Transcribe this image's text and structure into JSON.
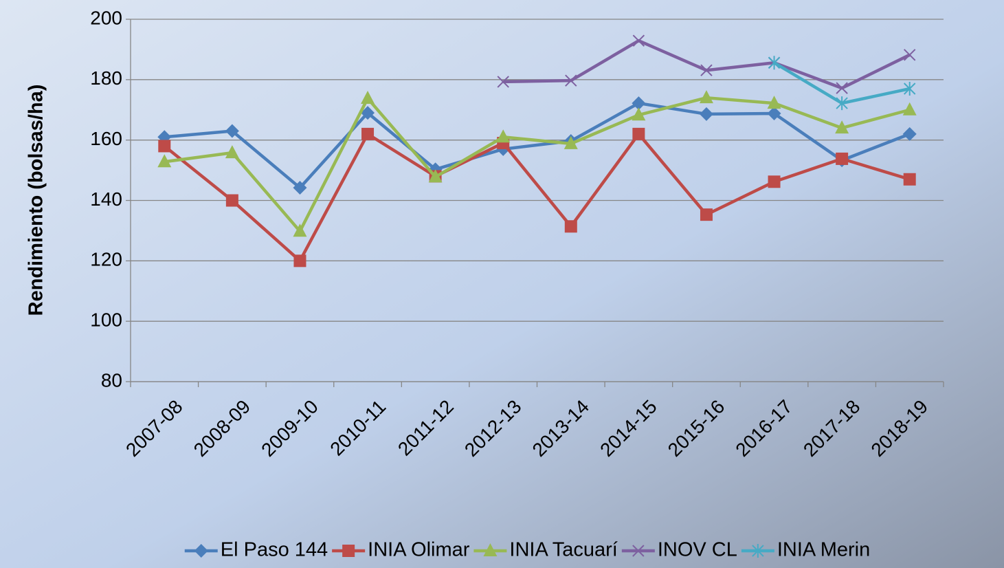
{
  "chart_data": {
    "type": "line",
    "y_label": "Rendimiento (bolsas/ha)",
    "categories": [
      "2007-08",
      "2008-09",
      "2009-10",
      "2010-11",
      "2011-12",
      "2012-13",
      "2013-14",
      "2014-15",
      "2015-16",
      "2016-17",
      "2017-18",
      "2018-19"
    ],
    "series": [
      {
        "name": "El Paso 144",
        "color": "#4a7ebb",
        "marker": "diamond",
        "values": [
          161,
          163,
          144.2,
          169,
          150.3,
          157,
          159.7,
          172.2,
          168.6,
          168.8,
          153.3,
          162
        ]
      },
      {
        "name": "INIA Olimar",
        "color": "#be4b48",
        "marker": "square",
        "values": [
          158,
          140,
          120,
          162,
          148,
          159,
          131.4,
          162,
          135.3,
          146.2,
          153.8,
          147
        ]
      },
      {
        "name": "INIA Tacuarí",
        "color": "#98b954",
        "marker": "triangle",
        "values": [
          152.8,
          155.8,
          129.8,
          173.8,
          147.8,
          161,
          158.8,
          168.3,
          174,
          172.2,
          164,
          170
        ]
      },
      {
        "name": "INOV CL",
        "color": "#7d60a0",
        "marker": "x",
        "values": [
          null,
          null,
          null,
          null,
          null,
          179.3,
          179.7,
          192.9,
          183.1,
          185.6,
          177.2,
          188.2
        ]
      },
      {
        "name": "INIA Merin",
        "color": "#46aac5",
        "marker": "star",
        "values": [
          null,
          null,
          null,
          null,
          null,
          null,
          null,
          null,
          null,
          185.6,
          172.2,
          177
        ]
      }
    ],
    "ylim": [
      80,
      200
    ],
    "yticks": [
      80,
      100,
      120,
      140,
      160,
      180,
      200
    ],
    "grid": true,
    "legend": "bottom"
  }
}
